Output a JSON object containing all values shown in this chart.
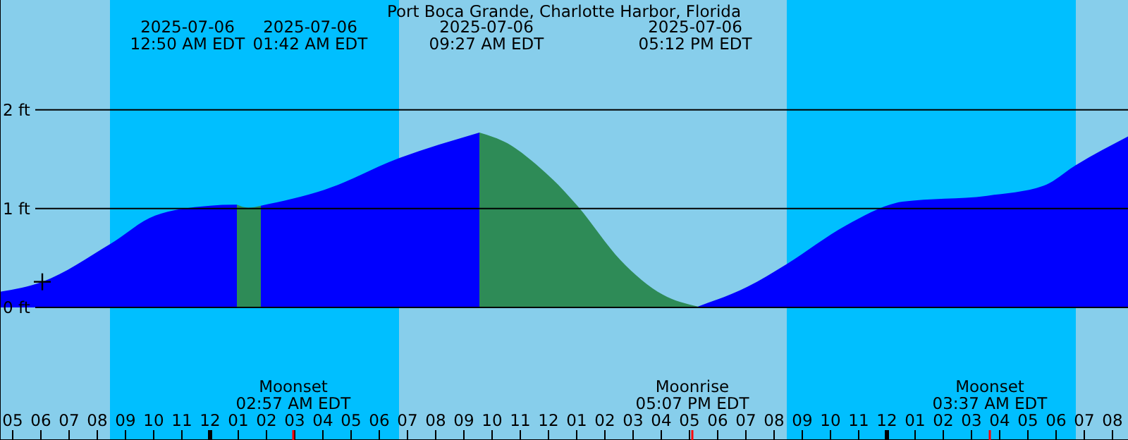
{
  "chart_data": {
    "type": "area",
    "title": "Port Boca Grande, Charlotte Harbor, Florida",
    "x": [
      "2025-07-05T16:33",
      "2025-07-05T18:03",
      "2025-07-05T20:27",
      "2025-07-05T22:03",
      "2025-07-06T00:00",
      "2025-07-06T00:51",
      "2025-07-06T00:57",
      "2025-07-06T01:21",
      "2025-07-06T01:48",
      "2025-07-06T04:03",
      "2025-07-06T06:42",
      "2025-07-06T09:33",
      "2025-07-06T10:33",
      "2025-07-06T11:33",
      "2025-07-06T12:33",
      "2025-07-06T13:03",
      "2025-07-06T14:33",
      "2025-07-06T16:03",
      "2025-07-06T17:18",
      "2025-07-06T19:03",
      "2025-07-06T20:27",
      "2025-07-06T22:33",
      "2025-07-07T00:33",
      "2025-07-07T03:33",
      "2025-07-07T05:33",
      "2025-07-07T06:42",
      "2025-07-07T08:33"
    ],
    "series": [
      {
        "color": "#0000ff",
        "values": [
          0.16,
          0.26,
          0.64,
          0.93,
          1.03,
          1.04,
          1.04,
          null,
          1.03,
          1.19,
          1.51,
          1.77,
          null,
          null,
          null,
          null,
          null,
          null,
          0.01,
          0.21,
          0.44,
          0.83,
          1.07,
          1.13,
          1.23,
          1.44,
          1.73
        ]
      },
      {
        "color": "#2e8b57",
        "values": [
          null,
          null,
          null,
          null,
          null,
          null,
          1.04,
          1.01,
          1.03,
          null,
          null,
          1.77,
          1.66,
          1.45,
          1.18,
          1.02,
          0.48,
          0.13,
          0.01,
          null,
          null,
          null,
          null,
          null,
          null,
          null,
          null
        ]
      },
      {
        "type": "scatter",
        "color": "#000000",
        "marker": "cross",
        "x": [
          "2025-07-05T18:03"
        ],
        "values": [
          0.26
        ]
      }
    ],
    "xlim": [
      "2025-07-05T16:33",
      "2025-07-07T08:33"
    ],
    "ylim": [
      -1.34,
      3.11
    ],
    "yticks": [
      {
        "value": 0,
        "label": "0 ft"
      },
      {
        "value": 1,
        "label": "1 ft"
      },
      {
        "value": 2,
        "label": "2 ft"
      }
    ],
    "xticks": [
      {
        "value": "2025-07-05T17:00",
        "label": "05"
      },
      {
        "value": "2025-07-05T18:00",
        "label": "06"
      },
      {
        "value": "2025-07-05T19:00",
        "label": "07"
      },
      {
        "value": "2025-07-05T20:00",
        "label": "08"
      },
      {
        "value": "2025-07-05T21:00",
        "label": "09"
      },
      {
        "value": "2025-07-05T22:00",
        "label": "10"
      },
      {
        "value": "2025-07-05T23:00",
        "label": "11"
      },
      {
        "value": "2025-07-06T00:00",
        "label": "12"
      },
      {
        "value": "2025-07-06T01:00",
        "label": "01"
      },
      {
        "value": "2025-07-06T02:00",
        "label": "02"
      },
      {
        "value": "2025-07-06T03:00",
        "label": "03"
      },
      {
        "value": "2025-07-06T04:00",
        "label": "04"
      },
      {
        "value": "2025-07-06T05:00",
        "label": "05"
      },
      {
        "value": "2025-07-06T06:00",
        "label": "06"
      },
      {
        "value": "2025-07-06T07:00",
        "label": "07"
      },
      {
        "value": "2025-07-06T08:00",
        "label": "08"
      },
      {
        "value": "2025-07-06T09:00",
        "label": "09"
      },
      {
        "value": "2025-07-06T10:00",
        "label": "10"
      },
      {
        "value": "2025-07-06T11:00",
        "label": "11"
      },
      {
        "value": "2025-07-06T12:00",
        "label": "12"
      },
      {
        "value": "2025-07-06T13:00",
        "label": "01"
      },
      {
        "value": "2025-07-06T14:00",
        "label": "02"
      },
      {
        "value": "2025-07-06T15:00",
        "label": "03"
      },
      {
        "value": "2025-07-06T16:00",
        "label": "04"
      },
      {
        "value": "2025-07-06T17:00",
        "label": "05"
      },
      {
        "value": "2025-07-06T18:00",
        "label": "06"
      },
      {
        "value": "2025-07-06T19:00",
        "label": "07"
      },
      {
        "value": "2025-07-06T20:00",
        "label": "08"
      },
      {
        "value": "2025-07-06T21:00",
        "label": "09"
      },
      {
        "value": "2025-07-06T22:00",
        "label": "10"
      },
      {
        "value": "2025-07-06T23:00",
        "label": "11"
      },
      {
        "value": "2025-07-07T00:00",
        "label": "12"
      },
      {
        "value": "2025-07-07T01:00",
        "label": "01"
      },
      {
        "value": "2025-07-07T02:00",
        "label": "02"
      },
      {
        "value": "2025-07-07T03:00",
        "label": "03"
      },
      {
        "value": "2025-07-07T04:00",
        "label": "04"
      },
      {
        "value": "2025-07-07T05:00",
        "label": "05"
      },
      {
        "value": "2025-07-07T06:00",
        "label": "06"
      },
      {
        "value": "2025-07-07T07:00",
        "label": "07"
      },
      {
        "value": "2025-07-07T08:00",
        "label": "08"
      }
    ],
    "grid": "y",
    "bands": [
      {
        "axis": "x",
        "from": "2025-07-05T16:33",
        "to": "2025-07-05T20:27",
        "color": "#87ceeb"
      },
      {
        "axis": "x",
        "from": "2025-07-05T20:27",
        "to": "2025-07-06T06:42",
        "color": "#00bfff"
      },
      {
        "axis": "x",
        "from": "2025-07-06T06:42",
        "to": "2025-07-06T20:27",
        "color": "#87ceeb"
      },
      {
        "axis": "x",
        "from": "2025-07-06T20:27",
        "to": "2025-07-07T06:42",
        "color": "#00bfff"
      },
      {
        "axis": "x",
        "from": "2025-07-07T06:42",
        "to": "2025-07-07T08:33",
        "color": "#87ceeb"
      }
    ],
    "annotations": [
      "2025-07-06\n12:50 AM EDT",
      "2025-07-06\n01:42 AM EDT",
      "2025-07-06\n09:27 AM EDT",
      "2025-07-06\n05:12 PM EDT",
      "Moonset\n02:57 AM EDT",
      "Moonrise\n05:07 PM EDT",
      "Moonset\n03:37 AM EDT"
    ]
  }
}
